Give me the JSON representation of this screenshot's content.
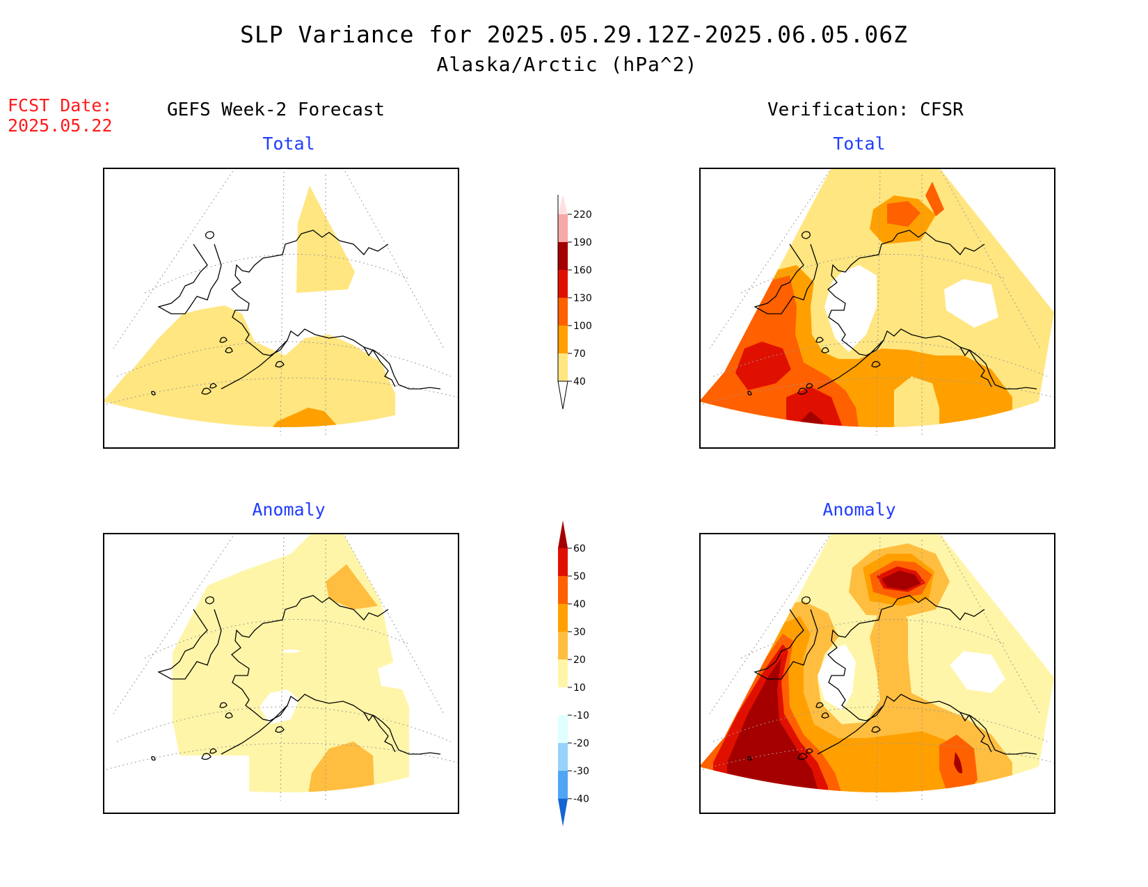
{
  "title": "SLP Variance for 2025.05.29.12Z-2025.06.05.06Z",
  "subtitle": "Alaska/Arctic (hPa^2)",
  "forecast_date": {
    "label": "FCST Date:",
    "value": "2025.05.22"
  },
  "columns": {
    "left": "GEFS Week-2 Forecast",
    "right": "Verification: CFSR"
  },
  "panels": {
    "top_left": {
      "title": "Total"
    },
    "top_right": {
      "title": "Total"
    },
    "bottom_left": {
      "title": "Anomaly"
    },
    "bottom_right": {
      "title": "Anomaly"
    }
  },
  "colorbars": {
    "total": {
      "labels": [
        "40",
        "70",
        "100",
        "130",
        "160",
        "190",
        "220"
      ],
      "colors": [
        "#ffe680",
        "#ffa000",
        "#ff6000",
        "#e01000",
        "#a50000",
        "#f7a8a8",
        "#fde0e0"
      ]
    },
    "anomaly": {
      "labels": [
        "60",
        "50",
        "40",
        "30",
        "20",
        "10",
        "-10",
        "-20",
        "-30",
        "-40"
      ],
      "colors": [
        "#a50000",
        "#e01000",
        "#ff6000",
        "#ffa000",
        "#ffbe40",
        "#fff5a8",
        "#ffffff",
        "#e0ffff",
        "#96d2fa",
        "#50a5f5",
        "#1464d2"
      ]
    }
  }
}
